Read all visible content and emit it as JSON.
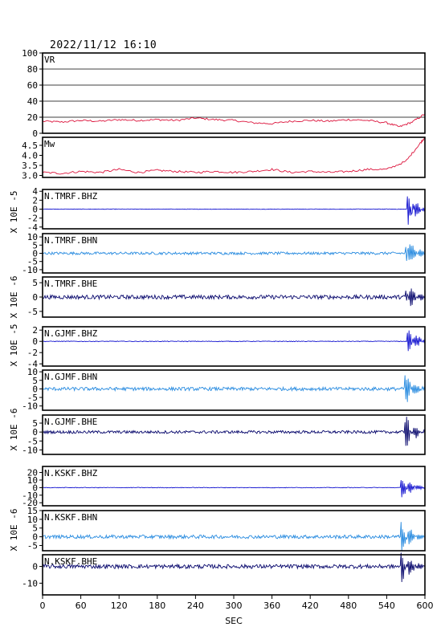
{
  "title": "2022/11/12  16:10",
  "chart_data": {
    "type": "line",
    "title": "2022/11/12  16:10",
    "xlabel": "SEC",
    "xlim": [
      0,
      600
    ],
    "x_ticks": [
      "0",
      "60",
      "120",
      "180",
      "240",
      "300",
      "360",
      "420",
      "480",
      "540",
      "600"
    ],
    "panels": [
      {
        "label": "VR",
        "ylim": [
          0,
          100
        ],
        "y_ticks": [
          "0",
          "20",
          "40",
          "60",
          "80",
          "100"
        ],
        "grid": true,
        "color": "#dc143c",
        "series": [
          [
            0,
            15
          ],
          [
            30,
            14
          ],
          [
            60,
            16
          ],
          [
            90,
            15
          ],
          [
            120,
            17
          ],
          [
            150,
            16
          ],
          [
            180,
            17
          ],
          [
            210,
            16
          ],
          [
            240,
            19
          ],
          [
            270,
            17
          ],
          [
            300,
            16
          ],
          [
            330,
            13
          ],
          [
            360,
            12
          ],
          [
            390,
            15
          ],
          [
            420,
            16
          ],
          [
            450,
            15
          ],
          [
            480,
            17
          ],
          [
            510,
            16
          ],
          [
            540,
            13
          ],
          [
            560,
            8
          ],
          [
            580,
            14
          ],
          [
            600,
            24
          ]
        ]
      },
      {
        "label": "Mw",
        "ylim": [
          2.9,
          4.9
        ],
        "y_ticks": [
          "3.0",
          "3.5",
          "4.0",
          "4.5"
        ],
        "grid": false,
        "color": "#dc143c",
        "series": [
          [
            0,
            3.15
          ],
          [
            30,
            3.1
          ],
          [
            60,
            3.2
          ],
          [
            90,
            3.15
          ],
          [
            120,
            3.3
          ],
          [
            150,
            3.15
          ],
          [
            180,
            3.25
          ],
          [
            210,
            3.2
          ],
          [
            240,
            3.15
          ],
          [
            270,
            3.2
          ],
          [
            300,
            3.15
          ],
          [
            330,
            3.2
          ],
          [
            360,
            3.3
          ],
          [
            390,
            3.15
          ],
          [
            420,
            3.2
          ],
          [
            450,
            3.15
          ],
          [
            480,
            3.2
          ],
          [
            510,
            3.3
          ],
          [
            540,
            3.3
          ],
          [
            570,
            3.7
          ],
          [
            590,
            4.5
          ],
          [
            600,
            4.9
          ]
        ]
      },
      {
        "label": "N.TMRF.BHZ",
        "ylim": [
          -4.4,
          4.4
        ],
        "y_ticks": [
          "-4",
          "-2",
          "0",
          "2",
          "4"
        ],
        "noise": 0.05,
        "onset": 572,
        "peak": 4.2,
        "color": "#1515d0"
      },
      {
        "label": "N.TMRF.BHN",
        "ylim": [
          -12,
          12
        ],
        "y_ticks": [
          "-10",
          "-5",
          "0",
          "5",
          "10"
        ],
        "noise": 0.8,
        "onset": 570,
        "peak": 11,
        "color": "#2a8ce0"
      },
      {
        "label": "N.TMRF.BHE",
        "ylim": [
          -7,
          7
        ],
        "y_ticks": [
          "-5",
          "0",
          "5"
        ],
        "noise": 0.7,
        "onset": 570,
        "peak": 6.5,
        "color": "#0a0a6e"
      },
      {
        "label": "N.GJMF.BHZ",
        "ylim": [
          -4.4,
          2.6
        ],
        "y_ticks": [
          "-4",
          "-2",
          "0",
          "2"
        ],
        "noise": 0.06,
        "onset": 572,
        "peak": 3,
        "color": "#1515d0"
      },
      {
        "label": "N.GJMF.BHN",
        "ylim": [
          -12.5,
          11
        ],
        "y_ticks": [
          "-10",
          "-5",
          "0",
          "5",
          "10"
        ],
        "noise": 1.0,
        "onset": 568,
        "peak": 10.5,
        "color": "#2a8ce0"
      },
      {
        "label": "N.GJMF.BHE",
        "ylim": [
          -12.5,
          9.5
        ],
        "y_ticks": [
          "-10",
          "-5",
          "0",
          "5"
        ],
        "noise": 0.8,
        "onset": 568,
        "peak": 11,
        "color": "#0a0a6e"
      },
      {
        "label": "N.KSKF.BHZ",
        "ylim": [
          -24,
          28
        ],
        "y_ticks": [
          "-20",
          "-10",
          "0",
          "10",
          "20"
        ],
        "noise": 0.4,
        "onset": 562,
        "peak": 22,
        "color": "#1515d0"
      },
      {
        "label": "N.KSKF.BHN",
        "ylim": [
          -8,
          15
        ],
        "y_ticks": [
          "-5",
          "0",
          "5",
          "10",
          "15"
        ],
        "noise": 1.0,
        "onset": 562,
        "peak": 12,
        "color": "#2a8ce0"
      },
      {
        "label": "N.KSKF.BHE",
        "ylim": [
          -17,
          7
        ],
        "y_ticks": [
          "-10",
          "0"
        ],
        "noise": 1.2,
        "onset": 562,
        "peak": 13,
        "color": "#0a0a6e"
      }
    ],
    "unit_labels": [
      "X 10E -5",
      "X 10E -6",
      "X 10E -5",
      "X 10E -6",
      "X 10E -6"
    ]
  }
}
